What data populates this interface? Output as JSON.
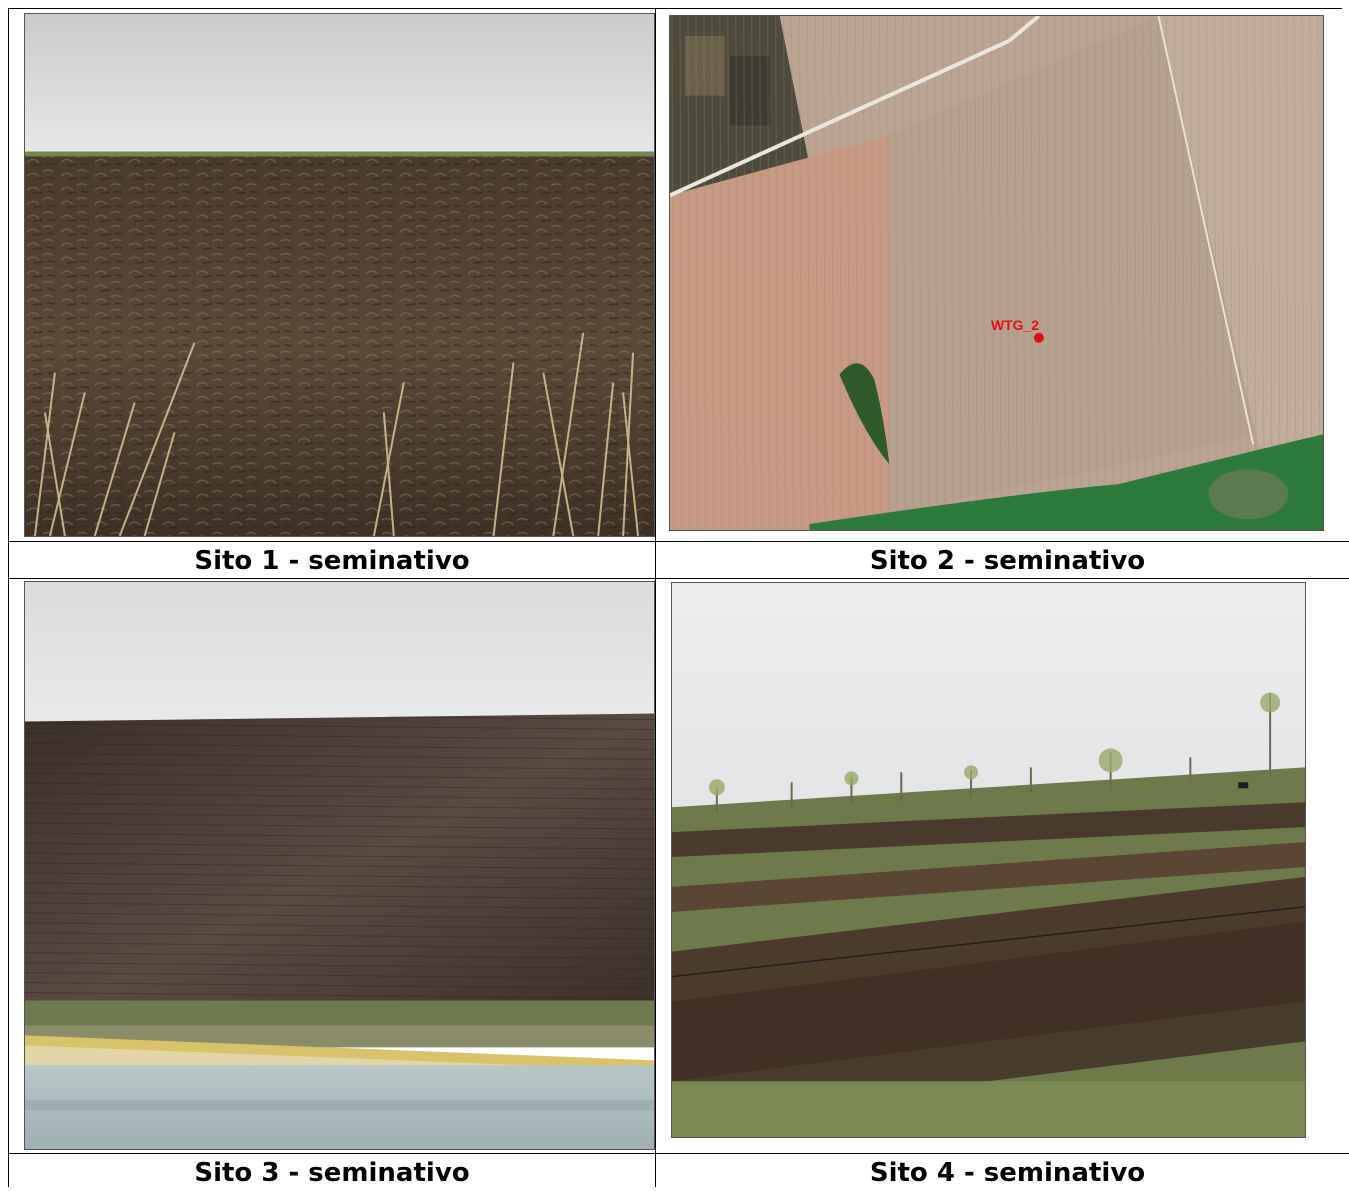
{
  "cells": [
    {
      "caption": "Sito 1 - seminativo"
    },
    {
      "caption": "Sito 2 - seminativo",
      "map_label": "WTG_2"
    },
    {
      "caption": "Sito 3 - seminativo"
    },
    {
      "caption": "Sito 4 - seminativo"
    }
  ],
  "colors": {
    "grid_line": "#000000",
    "map_marker": "#e01010"
  }
}
